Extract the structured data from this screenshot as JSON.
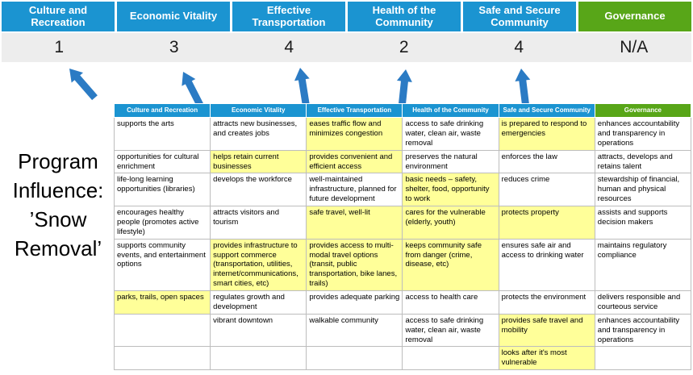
{
  "colors": {
    "header_blue": "#1b94d1",
    "header_green": "#58a618",
    "score_band_bg": "#ededed",
    "arrow_blue": "#2b7bc4",
    "highlight_yellow": "#ffff99",
    "table_border": "#bdbdbd"
  },
  "icons": {
    "score_arrow": "up-arrow"
  },
  "program_label": "Program Influence: ’Snow Removal’",
  "scoreboard": {
    "items": [
      {
        "label": "Culture and Recreation",
        "score": "1",
        "type": "blue"
      },
      {
        "label": "Economic Vitality",
        "score": "3",
        "type": "blue"
      },
      {
        "label": "Effective Transportation",
        "score": "4",
        "type": "blue"
      },
      {
        "label": "Health of the Community",
        "score": "2",
        "type": "blue"
      },
      {
        "label": "Safe and Secure Community",
        "score": "4",
        "type": "blue"
      },
      {
        "label": "Governance",
        "score": "N/A",
        "type": "green"
      }
    ]
  },
  "matrix": {
    "headers": [
      {
        "label": "Culture and Recreation",
        "type": "blue"
      },
      {
        "label": "Economic Vitality",
        "type": "blue"
      },
      {
        "label": "Effective Transportation",
        "type": "blue"
      },
      {
        "label": "Health of the Community",
        "type": "blue"
      },
      {
        "label": "Safe and Secure Community",
        "type": "blue"
      },
      {
        "label": "Governance",
        "type": "green"
      }
    ],
    "rows": [
      [
        {
          "text": "supports the arts",
          "highlight": false
        },
        {
          "text": "attracts new businesses, and creates jobs",
          "highlight": false
        },
        {
          "text": "eases traffic flow and minimizes congestion",
          "highlight": true
        },
        {
          "text": "access to safe drinking water, clean air, waste removal",
          "highlight": false
        },
        {
          "text": "is prepared to respond to emergencies",
          "highlight": true
        },
        {
          "text": "enhances accountability and transparency in operations",
          "highlight": false
        }
      ],
      [
        {
          "text": "opportunities for cultural enrichment",
          "highlight": false
        },
        {
          "text": "helps retain current businesses",
          "highlight": true
        },
        {
          "text": "provides convenient and efficient access",
          "highlight": true
        },
        {
          "text": "preserves the natural environment",
          "highlight": false
        },
        {
          "text": "enforces the law",
          "highlight": false
        },
        {
          "text": "attracts, develops and retains talent",
          "highlight": false
        }
      ],
      [
        {
          "text": "life-long learning opportunities (libraries)",
          "highlight": false
        },
        {
          "text": "develops the workforce",
          "highlight": false
        },
        {
          "text": "well-maintained infrastructure, planned for future development",
          "highlight": false
        },
        {
          "text": "basic needs – safety, shelter, food, opportunity to work",
          "highlight": true
        },
        {
          "text": "reduces crime",
          "highlight": false
        },
        {
          "text": "stewardship of financial, human and physical resources",
          "highlight": false
        }
      ],
      [
        {
          "text": "encourages healthy people (promotes active lifestyle)",
          "highlight": false
        },
        {
          "text": "attracts visitors and tourism",
          "highlight": false
        },
        {
          "text": "safe travel, well-lit",
          "highlight": true
        },
        {
          "text": "cares for the vulnerable (elderly, youth)",
          "highlight": true
        },
        {
          "text": "protects property",
          "highlight": true
        },
        {
          "text": "assists and supports decision makers",
          "highlight": false
        }
      ],
      [
        {
          "text": "supports community events, and entertainment options",
          "highlight": false
        },
        {
          "text": "provides infrastructure to support commerce (transportation, utilities, internet/communications, smart cities, etc)",
          "highlight": true
        },
        {
          "text": "provides access to multi-modal travel options (transit, public transportation, bike lanes, trails)",
          "highlight": true
        },
        {
          "text": "keeps community safe from danger (crime, disease, etc)",
          "highlight": true
        },
        {
          "text": "ensures safe air and access to drinking water",
          "highlight": false
        },
        {
          "text": "maintains regulatory compliance",
          "highlight": false
        }
      ],
      [
        {
          "text": "parks, trails, open spaces",
          "highlight": true
        },
        {
          "text": "regulates growth and development",
          "highlight": false
        },
        {
          "text": "provides adequate parking",
          "highlight": false
        },
        {
          "text": "access to health care",
          "highlight": false
        },
        {
          "text": "protects the environment",
          "highlight": false
        },
        {
          "text": "delivers responsible and courteous service",
          "highlight": false
        }
      ],
      [
        {
          "text": "",
          "highlight": false
        },
        {
          "text": "vibrant downtown",
          "highlight": false
        },
        {
          "text": "walkable community",
          "highlight": false
        },
        {
          "text": "access to safe drinking water, clean air, waste removal",
          "highlight": false
        },
        {
          "text": "provides safe travel and mobility",
          "highlight": true
        },
        {
          "text": "enhances accountability and transparency in operations",
          "highlight": false
        }
      ],
      [
        {
          "text": "",
          "highlight": false
        },
        {
          "text": "",
          "highlight": false
        },
        {
          "text": "",
          "highlight": false
        },
        {
          "text": "",
          "highlight": false
        },
        {
          "text": "looks after it's most vulnerable",
          "highlight": true
        },
        {
          "text": "",
          "highlight": false
        }
      ]
    ]
  }
}
